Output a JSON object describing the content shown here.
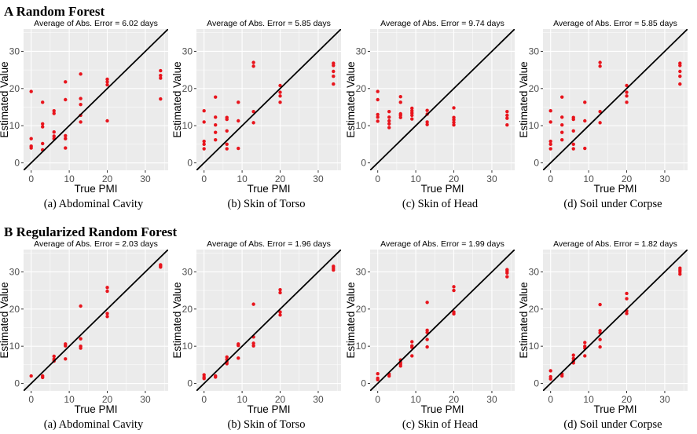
{
  "rows": [
    {
      "title": "A Random Forest"
    },
    {
      "title": "B Regularized Random Forest"
    }
  ],
  "colors": {
    "panel_bg": "#ebebeb",
    "grid": "#ffffff",
    "points": "#e8141c",
    "diagonal": "#000000"
  },
  "chart_data": [
    {
      "type": "scatter",
      "row": 0,
      "title": "Average of Abs. Error = 6.02 days",
      "caption": "(a) Abdominal Cavity",
      "xlabel": "True PMI",
      "ylabel": "Estimated Value",
      "xlim": [
        -2,
        36
      ],
      "ylim": [
        -2,
        36
      ],
      "xticks": [
        0,
        10,
        20,
        30
      ],
      "yticks": [
        0,
        10,
        20,
        30
      ],
      "diagonal": true,
      "grid": true,
      "points": [
        [
          0,
          19.2
        ],
        [
          0,
          6.5
        ],
        [
          0,
          4.5
        ],
        [
          0,
          4
        ],
        [
          3,
          16.3
        ],
        [
          3,
          10.5
        ],
        [
          3,
          9.7
        ],
        [
          3,
          5.2
        ],
        [
          3,
          3.5
        ],
        [
          6,
          14
        ],
        [
          6,
          13.3
        ],
        [
          6,
          8.3
        ],
        [
          6,
          7.2
        ],
        [
          6,
          6.5
        ],
        [
          9,
          21.8
        ],
        [
          9,
          17
        ],
        [
          9,
          7.3
        ],
        [
          9,
          6.5
        ],
        [
          9,
          4
        ],
        [
          13,
          23.9
        ],
        [
          13,
          17.3
        ],
        [
          13,
          15.7
        ],
        [
          13,
          12.8
        ],
        [
          13,
          11
        ],
        [
          20,
          22.5
        ],
        [
          20,
          21.8
        ],
        [
          20,
          21
        ],
        [
          20,
          11.3
        ],
        [
          34,
          24.8
        ],
        [
          34,
          23.5
        ],
        [
          34,
          22.8
        ],
        [
          34,
          17.2
        ]
      ]
    },
    {
      "type": "scatter",
      "row": 0,
      "title": "Average of Abs. Error = 5.85 days",
      "caption": "(b) Skin of Torso",
      "xlabel": "True PMI",
      "ylabel": "Estimated Value",
      "xlim": [
        -2,
        36
      ],
      "ylim": [
        -2,
        36
      ],
      "xticks": [
        0,
        10,
        20,
        30
      ],
      "yticks": [
        0,
        10,
        20,
        30
      ],
      "diagonal": true,
      "grid": true,
      "points": [
        [
          0,
          14
        ],
        [
          0,
          11
        ],
        [
          0,
          5.8
        ],
        [
          0,
          5
        ],
        [
          0,
          3.8
        ],
        [
          3,
          17.7
        ],
        [
          3,
          12.3
        ],
        [
          3,
          10.2
        ],
        [
          3,
          8.2
        ],
        [
          3,
          6.2
        ],
        [
          6,
          12.2
        ],
        [
          6,
          11.7
        ],
        [
          6,
          8.6
        ],
        [
          6,
          5
        ],
        [
          6,
          3.8
        ],
        [
          9,
          16.3
        ],
        [
          9,
          11.3
        ],
        [
          9,
          3.9
        ],
        [
          13,
          27
        ],
        [
          13,
          26
        ],
        [
          13,
          13.8
        ],
        [
          13,
          10.8
        ],
        [
          20,
          20.8
        ],
        [
          20,
          19
        ],
        [
          20,
          18
        ],
        [
          20,
          16.3
        ],
        [
          34,
          26.8
        ],
        [
          34,
          26.2
        ],
        [
          34,
          24.6
        ],
        [
          34,
          23.3
        ],
        [
          34,
          21.2
        ]
      ]
    },
    {
      "type": "scatter",
      "row": 0,
      "title": "Average of Abs. Error = 9.74 days",
      "caption": "(c) Skin of Head",
      "xlabel": "True PMI",
      "ylabel": "Estimated Value",
      "xlim": [
        -2,
        36
      ],
      "ylim": [
        -2,
        36
      ],
      "xticks": [
        0,
        10,
        20,
        30
      ],
      "yticks": [
        0,
        10,
        20,
        30
      ],
      "diagonal": true,
      "grid": true,
      "points": [
        [
          0,
          19.2
        ],
        [
          0,
          17
        ],
        [
          0,
          13
        ],
        [
          0,
          12.3
        ],
        [
          0,
          11.2
        ],
        [
          3,
          13.8
        ],
        [
          3,
          12.3
        ],
        [
          3,
          11.3
        ],
        [
          3,
          10.5
        ],
        [
          3,
          9.5
        ],
        [
          6,
          17.8
        ],
        [
          6,
          16.3
        ],
        [
          6,
          13.2
        ],
        [
          6,
          12.8
        ],
        [
          6,
          12.2
        ],
        [
          9,
          14.7
        ],
        [
          9,
          14
        ],
        [
          9,
          13.4
        ],
        [
          9,
          12.8
        ],
        [
          9,
          11.8
        ],
        [
          13,
          14.1
        ],
        [
          13,
          13.1
        ],
        [
          13,
          11
        ],
        [
          13,
          10.3
        ],
        [
          20,
          14.8
        ],
        [
          20,
          12.2
        ],
        [
          20,
          11.6
        ],
        [
          20,
          10.9
        ],
        [
          20,
          10.2
        ],
        [
          34,
          13.8
        ],
        [
          34,
          12.8
        ],
        [
          34,
          12
        ],
        [
          34,
          10.2
        ]
      ]
    },
    {
      "type": "scatter",
      "row": 0,
      "title": "Average of Abs. Error = 5.85 days",
      "caption": "(d) Soil under Corpse",
      "xlabel": "True PMI",
      "ylabel": "Estimated Value",
      "xlim": [
        -2,
        36
      ],
      "ylim": [
        -2,
        36
      ],
      "xticks": [
        0,
        10,
        20,
        30
      ],
      "yticks": [
        0,
        10,
        20,
        30
      ],
      "diagonal": true,
      "grid": true,
      "points": [
        [
          0,
          14
        ],
        [
          0,
          11
        ],
        [
          0,
          5.8
        ],
        [
          0,
          5
        ],
        [
          0,
          3.8
        ],
        [
          3,
          17.7
        ],
        [
          3,
          12.3
        ],
        [
          3,
          10.2
        ],
        [
          3,
          8.2
        ],
        [
          3,
          6.2
        ],
        [
          6,
          12.2
        ],
        [
          6,
          11.7
        ],
        [
          6,
          8.6
        ],
        [
          6,
          5
        ],
        [
          6,
          3.8
        ],
        [
          9,
          16.3
        ],
        [
          9,
          11.3
        ],
        [
          9,
          3.9
        ],
        [
          13,
          27
        ],
        [
          13,
          26
        ],
        [
          13,
          13.8
        ],
        [
          13,
          10.8
        ],
        [
          20,
          20.8
        ],
        [
          20,
          19
        ],
        [
          20,
          18
        ],
        [
          20,
          16.3
        ],
        [
          34,
          26.8
        ],
        [
          34,
          26.2
        ],
        [
          34,
          24.6
        ],
        [
          34,
          23.3
        ],
        [
          34,
          21.2
        ]
      ]
    },
    {
      "type": "scatter",
      "row": 1,
      "title": "Average of Abs. Error = 2.03 days",
      "caption": "(a) Abdominal Cavity",
      "xlabel": "True PMI",
      "ylabel": "Estimated Value",
      "xlim": [
        -2,
        36
      ],
      "ylim": [
        -2,
        36
      ],
      "xticks": [
        0,
        10,
        20,
        30
      ],
      "yticks": [
        0,
        10,
        20,
        30
      ],
      "diagonal": true,
      "grid": true,
      "points": [
        [
          0,
          2
        ],
        [
          3,
          2
        ],
        [
          3,
          1.6
        ],
        [
          6,
          7.3
        ],
        [
          6,
          6.5
        ],
        [
          6,
          6
        ],
        [
          9,
          10.6
        ],
        [
          9,
          10.1
        ],
        [
          9,
          6.6
        ],
        [
          13,
          20.8
        ],
        [
          13,
          12
        ],
        [
          13,
          10
        ],
        [
          13,
          9.5
        ],
        [
          20,
          25.8
        ],
        [
          20,
          24.8
        ],
        [
          20,
          18.8
        ],
        [
          20,
          18
        ],
        [
          34,
          31.9
        ],
        [
          34,
          31.6
        ],
        [
          34,
          31.3
        ]
      ]
    },
    {
      "type": "scatter",
      "row": 1,
      "title": "Average of Abs. Error = 1.96 days",
      "caption": "(b) Skin of Torso",
      "xlabel": "True PMI",
      "ylabel": "Estimated Value",
      "xlim": [
        -2,
        36
      ],
      "ylim": [
        -2,
        36
      ],
      "xticks": [
        0,
        10,
        20,
        30
      ],
      "yticks": [
        0,
        10,
        20,
        30
      ],
      "diagonal": true,
      "grid": true,
      "points": [
        [
          0,
          2.3
        ],
        [
          0,
          1.7
        ],
        [
          0,
          1.3
        ],
        [
          3,
          2
        ],
        [
          3,
          1.7
        ],
        [
          6,
          7.1
        ],
        [
          6,
          6.4
        ],
        [
          6,
          5.8
        ],
        [
          6,
          5.3
        ],
        [
          9,
          10.6
        ],
        [
          9,
          10.2
        ],
        [
          9,
          6.8
        ],
        [
          13,
          21.3
        ],
        [
          13,
          12.5
        ],
        [
          13,
          10.8
        ],
        [
          13,
          10.1
        ],
        [
          20,
          25.2
        ],
        [
          20,
          24.4
        ],
        [
          20,
          19.2
        ],
        [
          20,
          18.4
        ],
        [
          34,
          31.5
        ],
        [
          34,
          31
        ],
        [
          34,
          30.5
        ]
      ]
    },
    {
      "type": "scatter",
      "row": 1,
      "title": "Average of Abs. Error = 1.99 days",
      "caption": "(c) Skin of Head",
      "xlabel": "True PMI",
      "ylabel": "Estimated Value",
      "xlim": [
        -2,
        36
      ],
      "ylim": [
        -2,
        36
      ],
      "xticks": [
        0,
        10,
        20,
        30
      ],
      "yticks": [
        0,
        10,
        20,
        30
      ],
      "diagonal": true,
      "grid": true,
      "points": [
        [
          0,
          2.6
        ],
        [
          0,
          1.4
        ],
        [
          0,
          1
        ],
        [
          3,
          2.5
        ],
        [
          3,
          2
        ],
        [
          6,
          6.3
        ],
        [
          6,
          5.7
        ],
        [
          6,
          5.2
        ],
        [
          6,
          4.7
        ],
        [
          9,
          11.2
        ],
        [
          9,
          10.1
        ],
        [
          9,
          9.7
        ],
        [
          9,
          7.4
        ],
        [
          13,
          21.8
        ],
        [
          13,
          14.3
        ],
        [
          13,
          13.7
        ],
        [
          13,
          11.8
        ],
        [
          13,
          9.8
        ],
        [
          20,
          26
        ],
        [
          20,
          25
        ],
        [
          20,
          19.2
        ],
        [
          20,
          18.7
        ],
        [
          34,
          30.6
        ],
        [
          34,
          30.2
        ],
        [
          34,
          29.7
        ],
        [
          34,
          28.7
        ]
      ]
    },
    {
      "type": "scatter",
      "row": 1,
      "title": "Average of Abs. Error = 1.82 days",
      "caption": "(d) Soil under Corpse",
      "xlabel": "True PMI",
      "ylabel": "Estimated Value",
      "xlim": [
        -2,
        36
      ],
      "ylim": [
        -2,
        36
      ],
      "xticks": [
        0,
        10,
        20,
        30
      ],
      "yticks": [
        0,
        10,
        20,
        30
      ],
      "diagonal": true,
      "grid": true,
      "points": [
        [
          0,
          3.4
        ],
        [
          0,
          1.8
        ],
        [
          0,
          1.2
        ],
        [
          3,
          2.5
        ],
        [
          3,
          2
        ],
        [
          6,
          7.6
        ],
        [
          6,
          6.7
        ],
        [
          6,
          6
        ],
        [
          6,
          5.5
        ],
        [
          9,
          11
        ],
        [
          9,
          10
        ],
        [
          9,
          9.5
        ],
        [
          9,
          7.4
        ],
        [
          13,
          21.2
        ],
        [
          13,
          14.2
        ],
        [
          13,
          13.6
        ],
        [
          13,
          11.8
        ],
        [
          13,
          9.8
        ],
        [
          20,
          24.2
        ],
        [
          20,
          22.8
        ],
        [
          20,
          19.5
        ],
        [
          20,
          18.8
        ],
        [
          34,
          31
        ],
        [
          34,
          30.5
        ],
        [
          34,
          30
        ],
        [
          34,
          29.4
        ]
      ]
    }
  ]
}
